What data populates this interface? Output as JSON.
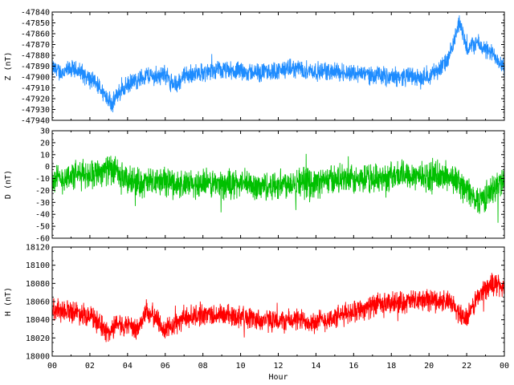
{
  "chart_data": [
    {
      "type": "line",
      "ylabel": "Z (nT)",
      "xlabel": "",
      "color": "#1e8cff",
      "ylim": [
        -47940,
        -47840
      ],
      "yticks": [
        "-47840",
        "-47850",
        "-47860",
        "-47870",
        "-47880",
        "-47890",
        "-47900",
        "-47910",
        "-47920",
        "-47930",
        "-47940"
      ],
      "noise": 7,
      "series": [
        {
          "x": [
            0,
            0.5,
            1,
            1.5,
            2,
            2.5,
            3,
            3.2,
            3.5,
            4,
            4.5,
            5,
            5.5,
            6,
            6.3,
            6.6,
            7,
            8,
            9,
            10,
            11,
            12,
            13,
            14,
            15,
            16,
            17,
            18,
            19,
            19.5,
            20,
            20.5,
            21,
            21.3,
            21.6,
            22,
            22.5,
            23,
            23.5,
            24
          ],
          "values": [
            -47892,
            -47896,
            -47893,
            -47895,
            -47902,
            -47910,
            -47920,
            -47925,
            -47915,
            -47908,
            -47903,
            -47898,
            -47900,
            -47897,
            -47905,
            -47908,
            -47898,
            -47896,
            -47894,
            -47895,
            -47896,
            -47894,
            -47892,
            -47895,
            -47895,
            -47896,
            -47898,
            -47900,
            -47899,
            -47902,
            -47898,
            -47893,
            -47885,
            -47870,
            -47848,
            -47875,
            -47868,
            -47875,
            -47880,
            -47890
          ]
        }
      ]
    },
    {
      "type": "line",
      "ylabel": "D (nT)",
      "xlabel": "",
      "color": "#00c000",
      "ylim": [
        -60,
        30
      ],
      "yticks": [
        "30",
        "20",
        "10",
        "0",
        "-10",
        "-20",
        "-30",
        "-40",
        "-50",
        "-60"
      ],
      "noise": 10,
      "series": [
        {
          "x": [
            0,
            1,
            2,
            3,
            4,
            5,
            6,
            7,
            8,
            9,
            10,
            11,
            12,
            13,
            14,
            15,
            16,
            17,
            18,
            19,
            20,
            21,
            21.5,
            22,
            22.5,
            23,
            23.5,
            24
          ],
          "values": [
            -12,
            -8,
            -6,
            -2,
            -12,
            -14,
            -12,
            -16,
            -14,
            -15,
            -14,
            -17,
            -15,
            -12,
            -14,
            -10,
            -12,
            -10,
            -8,
            -6,
            -9,
            -8,
            -12,
            -20,
            -28,
            -25,
            -18,
            -10
          ]
        }
      ]
    },
    {
      "type": "line",
      "ylabel": "H (nT)",
      "xlabel": "Hour",
      "color": "#ff0000",
      "ylim": [
        18000,
        18120
      ],
      "yticks": [
        "18120",
        "18100",
        "18080",
        "18060",
        "18040",
        "18020",
        "18000"
      ],
      "xticks": [
        "00",
        "02",
        "04",
        "06",
        "08",
        "10",
        "12",
        "14",
        "16",
        "18",
        "20",
        "22",
        "00"
      ],
      "xlim": [
        0,
        24
      ],
      "noise": 10,
      "series": [
        {
          "x": [
            0,
            1,
            2,
            2.5,
            3,
            3.5,
            4,
            4.5,
            5,
            5.5,
            6,
            6.5,
            7,
            8,
            9,
            10,
            11,
            12,
            13,
            14,
            15,
            16,
            17,
            18,
            19,
            20,
            21,
            21.5,
            22,
            22.5,
            23,
            23.5,
            24
          ],
          "values": [
            18052,
            18050,
            18045,
            18035,
            18025,
            18038,
            18032,
            18028,
            18050,
            18042,
            18028,
            18035,
            18042,
            18046,
            18045,
            18044,
            18040,
            18038,
            18040,
            18038,
            18042,
            18050,
            18055,
            18058,
            18060,
            18062,
            18060,
            18050,
            18040,
            18062,
            18075,
            18080,
            18075
          ]
        }
      ]
    }
  ]
}
